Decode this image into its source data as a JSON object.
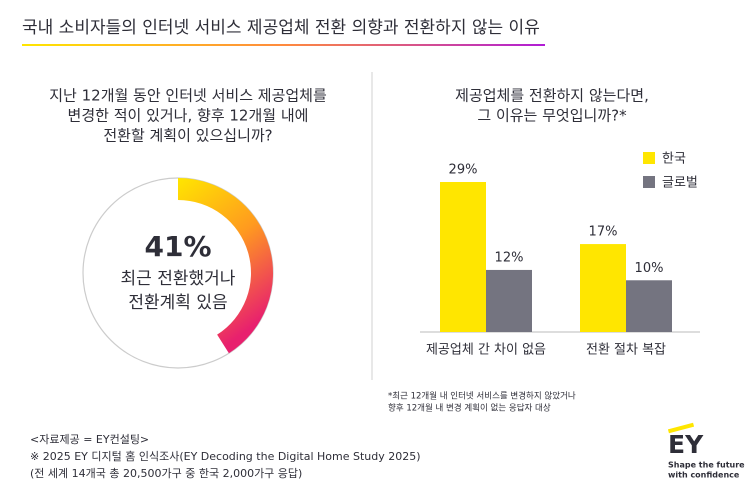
{
  "title": "국내 소비자들의 인터넷 서비스 제공업체 전환 의향과 전환하지 않는 이유",
  "chart_data": [
    {
      "type": "donut",
      "question": [
        "지난 12개월 동안 인터넷 서비스 제공업체를",
        "변경한 적이 있거나, 향후 12개월 내에",
        "전환할 계획이 있으십니까?"
      ],
      "value": 41,
      "value_label": "41%",
      "caption": [
        "최근 전환했거나",
        "전환계획 있음"
      ],
      "colors": [
        "#ffe600",
        "#ff9a1f",
        "#e8206e"
      ],
      "track_color": "#cccccc"
    },
    {
      "type": "bar",
      "question": [
        "제공업체를 전환하지 않는다면,",
        "그 이유는 무엇입니까?*"
      ],
      "categories": [
        "제공업체 간 차이 없음",
        "전환 절차 복잡"
      ],
      "series": [
        {
          "name": "한국",
          "color": "#ffe600",
          "values": [
            29,
            17
          ],
          "value_labels": [
            "29%",
            "17%"
          ]
        },
        {
          "name": "글로벌",
          "color": "#747480",
          "values": [
            12,
            10
          ],
          "value_labels": [
            "12%",
            "10%"
          ]
        }
      ],
      "footnote": [
        "*최근 12개월 내 인터넷 서비스를 변경하지 않았거나",
        "향후 12개월 내 변경 계획이 없는 응답자 대상"
      ]
    }
  ],
  "source": [
    "<자료제공 = EY컨설팅>",
    "※ 2025 EY 디지털 홈 인식조사(EY Decoding the Digital Home Study 2025)",
    "(전 세계 14개국 총 20,500가구 중 한국 2,000가구 응답)"
  ],
  "logo": {
    "name": "EY",
    "tagline": [
      "Shape the future",
      "with confidence"
    ]
  }
}
